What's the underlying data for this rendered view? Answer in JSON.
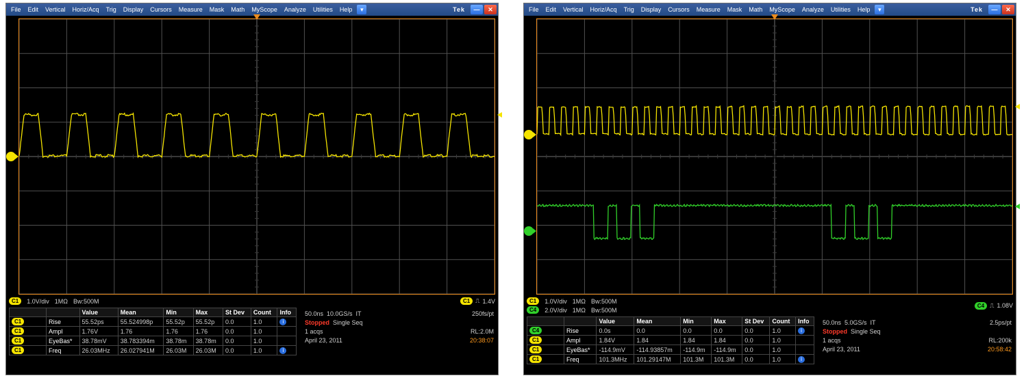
{
  "menus": [
    "File",
    "Edit",
    "Vertical",
    "Horiz/Acq",
    "Trig",
    "Display",
    "Cursors",
    "Measure",
    "Mask",
    "Math",
    "MyScope",
    "Analyze",
    "Utilities",
    "Help"
  ],
  "brand": "Tek",
  "colors": {
    "graticule_border": "#ea8b1e",
    "grid_minor": "#3a3a3a",
    "grid_major": "#505050",
    "grid_center": "#707070",
    "ch1": "#f5e400",
    "ch2": "#31d02a",
    "bg": "#000000",
    "menubar_top": "#3b5e9e",
    "menubar_bot": "#234b86",
    "stopped": "#ff3a2a",
    "timestamp": "#ff9a1e"
  },
  "scopes": [
    {
      "channels": [
        {
          "label": "C1",
          "scale": "1.0V/div",
          "impedance": "1MΩ",
          "bw": "Bw:500M",
          "marker_pct": 50
        }
      ],
      "trigger": {
        "label": "C1",
        "edge": "↗",
        "level": "1.4V"
      },
      "status": {
        "timebase": "50.0ns",
        "sample": "10.0GS/s",
        "mode": "IT",
        "res": "250fs/pt",
        "state": "Stopped",
        "seq": "Single Seq",
        "acqs": "1 acqs",
        "rl": "RL:2.0M",
        "date": "April 23, 2011",
        "time": "20:38:07"
      },
      "meas_headers": [
        "",
        "",
        "Value",
        "Mean",
        "Min",
        "Max",
        "St Dev",
        "Count",
        "Info"
      ],
      "measurements": [
        {
          "ch": "C1",
          "name": "Rise",
          "value": "55.52ps",
          "mean": "55.524998p",
          "min": "55.52p",
          "max": "55.52p",
          "stdev": "0.0",
          "count": "1.0",
          "info": true
        },
        {
          "ch": "C1",
          "name": "Ampl",
          "value": "1.76V",
          "mean": "1.76",
          "min": "1.76",
          "max": "1.76",
          "stdev": "0.0",
          "count": "1.0",
          "info": false
        },
        {
          "ch": "C1",
          "name": "EyeBas*",
          "value": "38.78mV",
          "mean": "38.783394m",
          "min": "38.78m",
          "max": "38.78m",
          "stdev": "0.0",
          "count": "1.0",
          "info": false
        },
        {
          "ch": "C1",
          "name": "Freq",
          "value": "26.03MHz",
          "mean": "26.027941M",
          "min": "26.03M",
          "max": "26.03M",
          "stdev": "0.0",
          "count": "1.0",
          "info": true
        }
      ],
      "wave1": {
        "type": "square",
        "color": "#f5e400",
        "baseline_pct": 50,
        "high_pct": 35,
        "periods": 10,
        "duty": 0.5,
        "edge": 0.1,
        "noise": 2.0
      }
    },
    {
      "channels": [
        {
          "label": "C1",
          "scale": "1.0V/div",
          "impedance": "1MΩ",
          "bw": "Bw:500M",
          "marker_pct": 42
        },
        {
          "label": "C4",
          "scale": "2.0V/div",
          "impedance": "1MΩ",
          "bw": "Bw:500M",
          "marker_pct": 77
        }
      ],
      "trigger": {
        "label": "C4",
        "edge": "↗",
        "level": "1.08V"
      },
      "status": {
        "timebase": "50.0ns",
        "sample": "5.0GS/s",
        "mode": "IT",
        "res": "2.5ps/pt",
        "state": "Stopped",
        "seq": "Single Seq",
        "acqs": "1 acqs",
        "rl": "RL:200k",
        "date": "April 23, 2011",
        "time": "20:58:42"
      },
      "meas_headers": [
        "",
        "",
        "Value",
        "Mean",
        "Min",
        "Max",
        "St Dev",
        "Count",
        "Info"
      ],
      "measurements": [
        {
          "ch": "C4",
          "name": "Rise",
          "value": "0.0s",
          "mean": "0.0",
          "min": "0.0",
          "max": "0.0",
          "stdev": "0.0",
          "count": "1.0",
          "info": true
        },
        {
          "ch": "C1",
          "name": "Ampl",
          "value": "1.84V",
          "mean": "1.84",
          "min": "1.84",
          "max": "1.84",
          "stdev": "0.0",
          "count": "1.0",
          "info": false
        },
        {
          "ch": "C1",
          "name": "EyeBas*",
          "value": "-114.9mV",
          "mean": "-114.93857m",
          "min": "-114.9m",
          "max": "-114.9m",
          "stdev": "0.0",
          "count": "1.0",
          "info": false
        },
        {
          "ch": "C1",
          "name": "Freq",
          "value": "101.3MHz",
          "mean": "101.29147M",
          "min": "101.3M",
          "max": "101.3M",
          "stdev": "0.0",
          "count": "1.0",
          "info": true
        }
      ],
      "wave1": {
        "type": "square",
        "color": "#f5e400",
        "baseline_pct": 42,
        "high_pct": 32,
        "periods": 40,
        "duty": 0.5,
        "edge": 0.05,
        "noise": 1.2
      },
      "wave2": {
        "type": "burst",
        "color": "#31d02a",
        "baseline_pct": 68,
        "low_pct": 80,
        "bursts": [
          {
            "start": 0.12,
            "pulses": 3,
            "width": 0.03,
            "gap": 0.018
          },
          {
            "start": 0.62,
            "pulses": 3,
            "width": 0.03,
            "gap": 0.018
          }
        ],
        "noise": 1.5
      }
    }
  ]
}
